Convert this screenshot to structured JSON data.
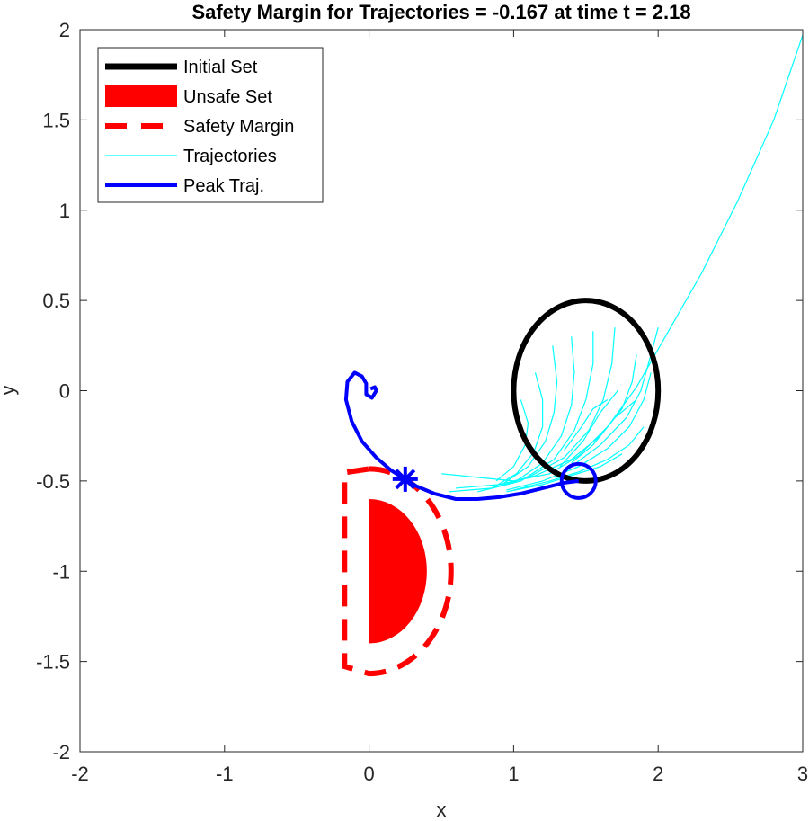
{
  "chart_data": {
    "type": "line",
    "title": "Safety Margin for Trajectories = -0.167 at time t = 2.18",
    "xlabel": "x",
    "ylabel": "y",
    "xlim": [
      -2,
      3
    ],
    "ylim": [
      -2,
      2
    ],
    "xticks": [
      -2,
      -1,
      0,
      1,
      2,
      3
    ],
    "yticks": [
      -2,
      -1.5,
      -1,
      -0.5,
      0,
      0.5,
      1,
      1.5,
      2
    ],
    "xtick_labels": [
      "-2",
      "-1",
      "0",
      "1",
      "2",
      "3"
    ],
    "ytick_labels": [
      "-2",
      "-1.5",
      "-1",
      "-0.5",
      "0",
      "0.5",
      "1",
      "1.5",
      "2"
    ],
    "grid": false,
    "legend_placement": "top-left",
    "legend": [
      {
        "label": "Initial Set",
        "color": "#000000",
        "style": "solid-thick"
      },
      {
        "label": "Unsafe Set",
        "color": "#ff0000",
        "style": "patch"
      },
      {
        "label": "Safety Margin",
        "color": "#ff0000",
        "style": "dashed"
      },
      {
        "label": "Trajectories",
        "color": "#00ffff",
        "style": "solid-thin"
      },
      {
        "label": "Peak Traj.",
        "color": "#0000ff",
        "style": "solid"
      }
    ],
    "initial_set": {
      "center": [
        1.5,
        0
      ],
      "radius_x": 0.5,
      "radius_y": 0.5,
      "color": "#000000"
    },
    "unsafe_set": {
      "center": [
        0,
        -1
      ],
      "radius": 0.4,
      "half": "right",
      "color": "#ff0000"
    },
    "safety_margin": {
      "center": [
        0,
        -1
      ],
      "radius": 0.567,
      "half": "right",
      "color": "#ff0000"
    },
    "peak_point": [
      0.25,
      -0.49
    ],
    "peak_start": [
      1.45,
      -0.5
    ],
    "peak_trajectory": [
      [
        1.45,
        -0.5
      ],
      [
        1.35,
        -0.51
      ],
      [
        1.2,
        -0.54
      ],
      [
        1.05,
        -0.57
      ],
      [
        0.9,
        -0.59
      ],
      [
        0.75,
        -0.6
      ],
      [
        0.6,
        -0.6
      ],
      [
        0.45,
        -0.57
      ],
      [
        0.33,
        -0.53
      ],
      [
        0.25,
        -0.49
      ],
      [
        0.15,
        -0.44
      ],
      [
        0.05,
        -0.37
      ],
      [
        -0.05,
        -0.28
      ],
      [
        -0.12,
        -0.17
      ],
      [
        -0.16,
        -0.05
      ],
      [
        -0.15,
        0.05
      ],
      [
        -0.1,
        0.1
      ],
      [
        -0.05,
        0.08
      ],
      [
        -0.02,
        0.04
      ],
      [
        -0.02,
        -0.02
      ],
      [
        0.02,
        -0.04
      ],
      [
        0.05,
        0.0
      ],
      [
        0.04,
        0.02
      ],
      [
        0.01,
        0.01
      ]
    ],
    "trajectories": [
      [
        [
          3.0,
          1.97
        ],
        [
          2.8,
          1.5
        ],
        [
          2.55,
          1.05
        ],
        [
          2.3,
          0.65
        ],
        [
          2.05,
          0.3
        ],
        [
          1.85,
          0.02
        ],
        [
          1.65,
          -0.2
        ],
        [
          1.45,
          -0.36
        ],
        [
          1.25,
          -0.46
        ],
        [
          1.0,
          -0.5
        ],
        [
          0.75,
          -0.48
        ],
        [
          0.5,
          -0.46
        ]
      ],
      [
        [
          1.85,
          0.2
        ],
        [
          1.82,
          0.05
        ],
        [
          1.75,
          -0.1
        ],
        [
          1.6,
          -0.25
        ],
        [
          1.4,
          -0.38
        ],
        [
          1.15,
          -0.47
        ],
        [
          0.9,
          -0.52
        ],
        [
          0.6,
          -0.54
        ]
      ],
      [
        [
          1.7,
          0.35
        ],
        [
          1.68,
          0.15
        ],
        [
          1.62,
          -0.05
        ],
        [
          1.52,
          -0.22
        ],
        [
          1.35,
          -0.37
        ],
        [
          1.1,
          -0.48
        ],
        [
          0.85,
          -0.54
        ],
        [
          0.55,
          -0.56
        ]
      ],
      [
        [
          1.55,
          0.33
        ],
        [
          1.55,
          0.15
        ],
        [
          1.5,
          -0.05
        ],
        [
          1.42,
          -0.22
        ],
        [
          1.28,
          -0.38
        ],
        [
          1.05,
          -0.5
        ],
        [
          0.8,
          -0.55
        ]
      ],
      [
        [
          1.4,
          0.3
        ],
        [
          1.42,
          0.1
        ],
        [
          1.4,
          -0.08
        ],
        [
          1.33,
          -0.25
        ],
        [
          1.2,
          -0.4
        ],
        [
          1.0,
          -0.51
        ],
        [
          0.75,
          -0.56
        ]
      ],
      [
        [
          1.27,
          0.25
        ],
        [
          1.3,
          0.05
        ],
        [
          1.28,
          -0.12
        ],
        [
          1.22,
          -0.28
        ],
        [
          1.1,
          -0.42
        ],
        [
          0.92,
          -0.52
        ]
      ],
      [
        [
          1.15,
          0.1
        ],
        [
          1.2,
          -0.05
        ],
        [
          1.2,
          -0.2
        ],
        [
          1.14,
          -0.34
        ],
        [
          1.02,
          -0.46
        ],
        [
          0.85,
          -0.54
        ]
      ],
      [
        [
          1.05,
          -0.05
        ],
        [
          1.1,
          -0.18
        ],
        [
          1.08,
          -0.3
        ],
        [
          1.0,
          -0.42
        ],
        [
          0.88,
          -0.5
        ]
      ],
      [
        [
          1.95,
          0.1
        ],
        [
          1.9,
          -0.05
        ],
        [
          1.8,
          -0.2
        ],
        [
          1.65,
          -0.32
        ],
        [
          1.45,
          -0.42
        ],
        [
          1.2,
          -0.5
        ],
        [
          0.95,
          -0.55
        ]
      ],
      [
        [
          1.9,
          -0.2
        ],
        [
          1.8,
          -0.3
        ],
        [
          1.65,
          -0.38
        ],
        [
          1.45,
          -0.45
        ],
        [
          1.25,
          -0.5
        ],
        [
          1.0,
          -0.55
        ]
      ],
      [
        [
          1.75,
          -0.35
        ],
        [
          1.6,
          -0.42
        ],
        [
          1.4,
          -0.47
        ],
        [
          1.2,
          -0.52
        ],
        [
          0.95,
          -0.56
        ]
      ],
      [
        [
          2.0,
          0.35
        ],
        [
          1.95,
          0.2
        ],
        [
          1.88,
          0.0
        ],
        [
          1.78,
          -0.15
        ],
        [
          1.6,
          -0.3
        ],
        [
          1.4,
          -0.42
        ]
      ],
      [
        [
          1.72,
          0.0
        ],
        [
          1.6,
          -0.12
        ],
        [
          1.48,
          -0.28
        ],
        [
          1.32,
          -0.42
        ]
      ],
      [
        [
          1.85,
          -0.05
        ],
        [
          1.7,
          -0.15
        ],
        [
          1.55,
          -0.3
        ],
        [
          1.4,
          -0.4
        ]
      ],
      [
        [
          1.65,
          -0.05
        ],
        [
          1.55,
          -0.1
        ],
        [
          1.47,
          -0.2
        ],
        [
          1.35,
          -0.33
        ]
      ]
    ]
  }
}
